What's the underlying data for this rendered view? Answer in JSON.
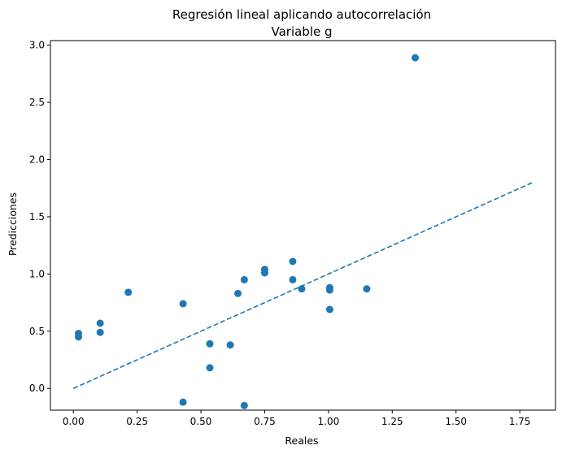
{
  "chart_data": {
    "type": "scatter",
    "title": "Regresión lineal aplicando autocorrelación",
    "subtitle": "Variable g",
    "xlabel": "Reales",
    "ylabel": "Predicciones",
    "xlim": [
      -0.09,
      1.89
    ],
    "ylim": [
      -0.19,
      3.04
    ],
    "x_ticks": [
      0.0,
      0.25,
      0.5,
      0.75,
      1.0,
      1.25,
      1.5,
      1.75
    ],
    "x_tick_labels": [
      "0.00",
      "0.25",
      "0.50",
      "0.75",
      "1.00",
      "1.25",
      "1.50",
      "1.75"
    ],
    "y_ticks": [
      0.0,
      0.5,
      1.0,
      1.5,
      2.0,
      2.5,
      3.0
    ],
    "y_tick_labels": [
      "0.0",
      "0.5",
      "1.0",
      "1.5",
      "2.0",
      "2.5",
      "3.0"
    ],
    "grid": false,
    "series": [
      {
        "type": "scatter",
        "color": "#1f77b4",
        "points": [
          {
            "x": 0.02,
            "y": 0.48
          },
          {
            "x": 0.02,
            "y": 0.45
          },
          {
            "x": 0.105,
            "y": 0.57
          },
          {
            "x": 0.105,
            "y": 0.49
          },
          {
            "x": 0.215,
            "y": 0.84
          },
          {
            "x": 0.43,
            "y": 0.74
          },
          {
            "x": 0.43,
            "y": -0.12
          },
          {
            "x": 0.535,
            "y": 0.39
          },
          {
            "x": 0.535,
            "y": 0.18
          },
          {
            "x": 0.615,
            "y": 0.38
          },
          {
            "x": 0.645,
            "y": 0.83
          },
          {
            "x": 0.67,
            "y": 0.95
          },
          {
            "x": 0.67,
            "y": -0.15
          },
          {
            "x": 0.75,
            "y": 1.04
          },
          {
            "x": 0.75,
            "y": 1.01
          },
          {
            "x": 0.86,
            "y": 1.11
          },
          {
            "x": 0.86,
            "y": 0.95
          },
          {
            "x": 0.895,
            "y": 0.87
          },
          {
            "x": 1.005,
            "y": 0.88
          },
          {
            "x": 1.005,
            "y": 0.86
          },
          {
            "x": 1.005,
            "y": 0.69
          },
          {
            "x": 1.15,
            "y": 0.87
          },
          {
            "x": 1.34,
            "y": 2.89
          }
        ]
      },
      {
        "type": "line",
        "style": "dashed",
        "color": "#1f77b4",
        "points": [
          {
            "x": 0.0,
            "y": 0.0
          },
          {
            "x": 1.8,
            "y": 1.8
          }
        ]
      }
    ]
  }
}
